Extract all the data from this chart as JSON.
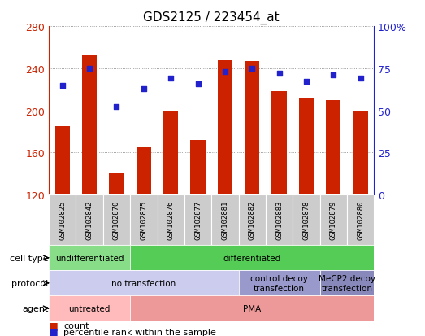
{
  "title": "GDS2125 / 223454_at",
  "samples": [
    "GSM102825",
    "GSM102842",
    "GSM102870",
    "GSM102875",
    "GSM102876",
    "GSM102877",
    "GSM102881",
    "GSM102882",
    "GSM102883",
    "GSM102878",
    "GSM102879",
    "GSM102880"
  ],
  "counts": [
    185,
    253,
    140,
    165,
    200,
    172,
    248,
    247,
    218,
    212,
    210,
    200
  ],
  "percentiles": [
    65,
    75,
    52,
    63,
    69,
    66,
    73,
    75,
    72,
    67,
    71,
    69
  ],
  "y_min": 120,
  "y_max": 280,
  "y_ticks": [
    120,
    160,
    200,
    240,
    280
  ],
  "y2_ticks": [
    0,
    25,
    50,
    75,
    100
  ],
  "y2_tick_labels": [
    "0",
    "25",
    "50",
    "75",
    "100%"
  ],
  "bar_color": "#CC2200",
  "dot_color": "#2222CC",
  "cell_type_segs": [
    {
      "text": "undifferentiated",
      "start": 0,
      "end": 3,
      "color": "#88DD88"
    },
    {
      "text": "differentiated",
      "start": 3,
      "end": 12,
      "color": "#55CC55"
    }
  ],
  "protocol_segs": [
    {
      "text": "no transfection",
      "start": 0,
      "end": 7,
      "color": "#CCCCEE"
    },
    {
      "text": "control decoy\ntransfection",
      "start": 7,
      "end": 10,
      "color": "#9999CC"
    },
    {
      "text": "MeCP2 decoy\ntransfection",
      "start": 10,
      "end": 12,
      "color": "#8888BB"
    }
  ],
  "agent_segs": [
    {
      "text": "untreated",
      "start": 0,
      "end": 3,
      "color": "#FFBBBB"
    },
    {
      "text": "PMA",
      "start": 3,
      "end": 12,
      "color": "#EE9999"
    }
  ],
  "row_labels": [
    "cell type",
    "protocol",
    "agent"
  ],
  "sample_bg_color": "#CCCCCC",
  "legend_count_color": "#CC2200",
  "legend_dot_color": "#2222CC"
}
